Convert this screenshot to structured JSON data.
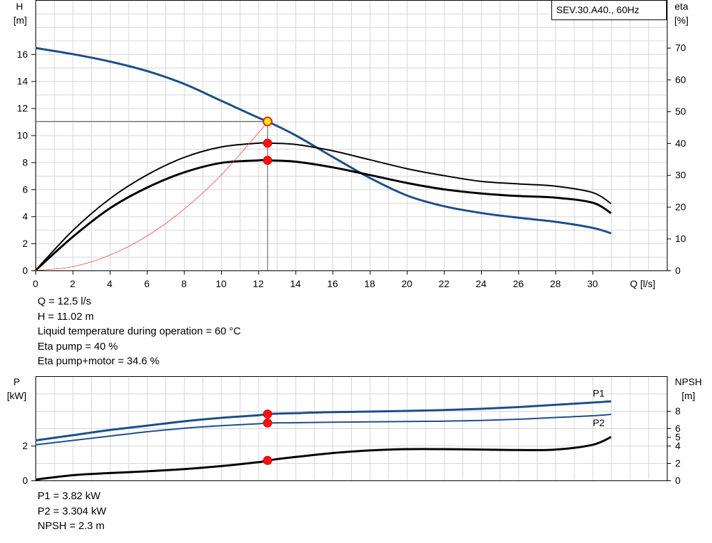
{
  "chart_data": [
    {
      "type": "line",
      "title": "SEV.30.A40., 60Hz",
      "xlabel": "Q [l/s]",
      "ylabel_left": [
        "H",
        "[m]"
      ],
      "ylabel_right": [
        "eta",
        "[%]"
      ],
      "xlim": [
        0,
        34
      ],
      "ylim_left": [
        0,
        20
      ],
      "ylim_right": [
        0,
        85
      ],
      "x_ticks": [
        0,
        2,
        4,
        6,
        8,
        10,
        12,
        14,
        16,
        18,
        20,
        22,
        24,
        26,
        28,
        30
      ],
      "y_left_ticks": [
        0,
        2,
        4,
        6,
        8,
        10,
        12,
        14,
        16
      ],
      "y_right_ticks": [
        0,
        10,
        20,
        30,
        40,
        50,
        60,
        70
      ],
      "grid": true,
      "series": [
        {
          "axis": "left",
          "color": "#1a4f8a",
          "width": 3,
          "x": [
            0,
            2,
            4,
            6,
            8,
            10,
            12,
            12.5,
            14,
            16,
            18,
            20,
            22,
            24,
            26,
            28,
            30,
            31
          ],
          "y": [
            16.45,
            16.0,
            15.45,
            14.75,
            13.8,
            12.55,
            11.3,
            11.02,
            10.0,
            8.4,
            6.85,
            5.55,
            4.75,
            4.25,
            3.9,
            3.6,
            3.15,
            2.75
          ]
        },
        {
          "axis": "right",
          "color": "#000000",
          "width": 2,
          "x": [
            0,
            2,
            4,
            6,
            8,
            10,
            12,
            12.5,
            14,
            16,
            18,
            20,
            22,
            24,
            26,
            28,
            30,
            31
          ],
          "y": [
            0,
            12.5,
            22.5,
            30.0,
            35.5,
            38.8,
            40.0,
            40.0,
            39.6,
            37.6,
            34.8,
            32.0,
            29.8,
            28.0,
            27.2,
            26.5,
            24.5,
            21.0
          ]
        },
        {
          "axis": "right",
          "color": "#000000",
          "width": 3,
          "x": [
            0,
            2,
            4,
            6,
            8,
            10,
            12,
            12.5,
            14,
            16,
            18,
            20,
            22,
            24,
            26,
            28,
            30,
            31
          ],
          "y": [
            0,
            10.5,
            19.5,
            26.0,
            30.8,
            33.8,
            34.6,
            34.6,
            34.2,
            32.4,
            30.0,
            27.5,
            25.5,
            24.2,
            23.4,
            22.9,
            21.3,
            18.0
          ]
        },
        {
          "axis": "left",
          "color": "#ff4444",
          "width": 0.8,
          "x": [
            0,
            2,
            4,
            6,
            8,
            10,
            12,
            12.5
          ],
          "y": [
            0,
            0.28,
            1.13,
            2.54,
            4.52,
            7.06,
            10.16,
            11.02
          ]
        }
      ],
      "operating_point": {
        "x": 12.5,
        "H": 11.02,
        "eta_pump": 40,
        "eta_total": 34.6
      },
      "info_lines": [
        "Q = 12.5 l/s",
        "H = 11.02 m",
        "Liquid temperature during operation = 60 °C",
        "Eta pump = 40 %",
        "Eta pump+motor = 34.6 %"
      ]
    },
    {
      "type": "line",
      "ylabel_left": [
        "P",
        "[kW]"
      ],
      "ylabel_right": [
        "NPSH",
        "[m]"
      ],
      "xlim": [
        0,
        34
      ],
      "ylim_left": [
        0,
        6
      ],
      "ylim_right": [
        0,
        12
      ],
      "y_left_ticks": [
        0,
        2
      ],
      "y_right_ticks": [
        0,
        2,
        4,
        5,
        6,
        8
      ],
      "grid": true,
      "series": [
        {
          "name": "P1",
          "axis": "left",
          "color": "#1a4f8a",
          "width": 3,
          "x": [
            0,
            2,
            4,
            6,
            8,
            10,
            12,
            12.5,
            14,
            16,
            18,
            20,
            22,
            24,
            26,
            28,
            30,
            31
          ],
          "y": [
            2.3,
            2.6,
            2.9,
            3.15,
            3.4,
            3.6,
            3.75,
            3.82,
            3.87,
            3.93,
            3.96,
            4.0,
            4.05,
            4.12,
            4.22,
            4.35,
            4.48,
            4.55
          ]
        },
        {
          "name": "P2",
          "axis": "left",
          "color": "#1a4f8a",
          "width": 2,
          "x": [
            0,
            2,
            4,
            6,
            8,
            10,
            12,
            12.5,
            14,
            16,
            18,
            20,
            22,
            24,
            26,
            28,
            30,
            31
          ],
          "y": [
            2.05,
            2.3,
            2.55,
            2.8,
            3.0,
            3.15,
            3.26,
            3.304,
            3.32,
            3.35,
            3.37,
            3.39,
            3.41,
            3.45,
            3.52,
            3.62,
            3.72,
            3.8
          ]
        },
        {
          "name": "",
          "axis": "right",
          "color": "#000000",
          "width": 3,
          "x": [
            0,
            2,
            4,
            6,
            8,
            10,
            12,
            12.5,
            14,
            16,
            18,
            20,
            22,
            24,
            26,
            28,
            30,
            31
          ],
          "y": [
            0.1,
            0.6,
            0.85,
            1.05,
            1.3,
            1.65,
            2.1,
            2.3,
            2.7,
            3.15,
            3.45,
            3.6,
            3.6,
            3.55,
            3.5,
            3.55,
            4.1,
            5.0
          ]
        }
      ],
      "operating_point": {
        "x": 12.5,
        "P1": 3.82,
        "P2": 3.304,
        "NPSH": 2.3
      },
      "info_lines": [
        "P1 = 3.82 kW",
        "P2 = 3.304 kW",
        "NPSH = 2.3 m"
      ]
    }
  ]
}
